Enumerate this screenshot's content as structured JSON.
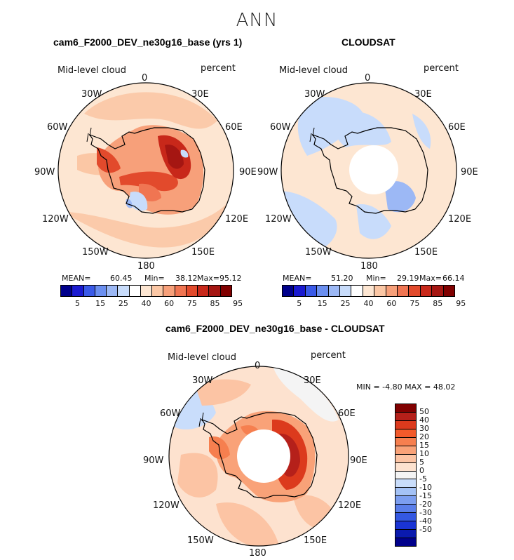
{
  "season": "ANN",
  "colors": {
    "abs_scale": [
      "#00008b",
      "#1a1ad0",
      "#3a5ae8",
      "#6b8ff0",
      "#9cb8f5",
      "#c8dcfb",
      "#ffffff",
      "#fde6d2",
      "#fbc7a5",
      "#f7a07a",
      "#f07552",
      "#e24a2c",
      "#c8281a",
      "#a51612",
      "#800000"
    ],
    "diff_scale": [
      "#800000",
      "#b5201a",
      "#dc3a1d",
      "#f25a2b",
      "#f67f4f",
      "#f9a278",
      "#fcc4a4",
      "#fde2cf",
      "#f4f4f4",
      "#c9ddfb",
      "#a4c2f6",
      "#7c9ef0",
      "#5a7eea",
      "#3458e2",
      "#1a34d4",
      "#0a1aae",
      "#00008b"
    ]
  },
  "panels": {
    "model": {
      "title": "cam6_F2000_DEV_ne30g16_base (yrs 1)",
      "varname": "Mid-level cloud",
      "units": "percent",
      "mean_label": "MEAN=",
      "mean": "60.45",
      "min_label": "Min=",
      "min": "38.12",
      "max_label": "Max=",
      "max": "95.12"
    },
    "obs": {
      "title": "CLOUDSAT",
      "varname": "Mid-level cloud",
      "units": "percent",
      "mean_label": "MEAN=",
      "mean": "51.20",
      "min_label": "Min=",
      "min": "29.19",
      "max_label": "Max=",
      "max": "66.14"
    },
    "diff": {
      "title": "cam6_F2000_DEV_ne30g16_base - CLOUDSAT",
      "varname": "Mid-level cloud",
      "units": "percent",
      "minmax": "MIN =   -4.80  MAX =   48.02"
    }
  },
  "lon_labels": {
    "l0": "0",
    "l30e": "30E",
    "l60e": "60E",
    "l90e": "90E",
    "l120e": "120E",
    "l150e": "150E",
    "l180": "180",
    "l150w": "150W",
    "l120w": "120W",
    "l90w": "90W",
    "l60w": "60W",
    "l30w": "30W"
  },
  "abs_ticks": [
    "5",
    "15",
    "25",
    "40",
    "60",
    "75",
    "85",
    "95"
  ],
  "diff_ticks": [
    "50",
    "40",
    "30",
    "20",
    "15",
    "10",
    "5",
    "0",
    "-5",
    "-10",
    "-15",
    "-20",
    "-30",
    "-40",
    "-50"
  ]
}
